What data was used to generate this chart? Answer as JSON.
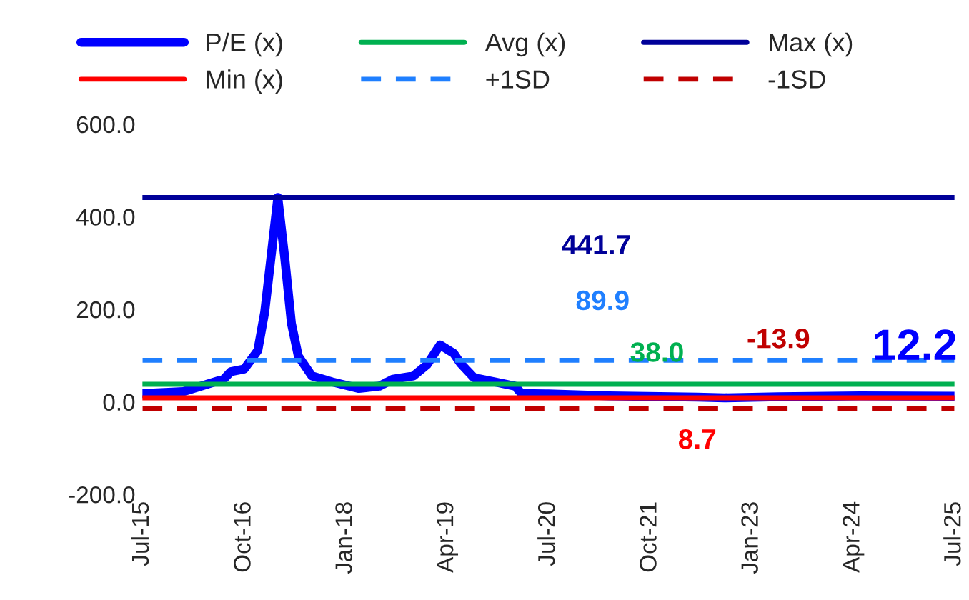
{
  "chart_data": {
    "type": "line",
    "x": [
      "2015-07",
      "2016-01",
      "2016-07",
      "2016-08",
      "2016-10",
      "2016-12",
      "2017-01",
      "2017-02",
      "2017-03",
      "2017-04",
      "2017-05",
      "2017-06",
      "2017-08",
      "2017-11",
      "2018-03",
      "2018-06",
      "2018-08",
      "2018-11",
      "2019-01",
      "2019-03",
      "2019-05",
      "2019-06",
      "2019-08",
      "2019-11",
      "2020-02",
      "2020-03",
      "2020-07",
      "2021-04",
      "2022-05",
      "2022-09",
      "2023-05",
      "2024-05",
      "2025-07"
    ],
    "series": [
      {
        "name": "P/E (x)",
        "color": "#0000ff",
        "values": [
          18,
          22,
          49,
          65,
          71,
          111,
          194,
          324,
          441.7,
          312,
          170,
          99,
          56,
          43,
          29,
          34,
          49,
          56,
          80,
          123,
          105,
          83,
          52,
          43,
          34,
          18,
          17,
          13,
          10,
          8.7,
          11,
          13,
          12.2
        ]
      },
      {
        "name": "Avg (x)",
        "color": "#00b050",
        "x": [
          "2015-07",
          "2025-07"
        ],
        "values": [
          38.0,
          38.0
        ]
      },
      {
        "name": "Max (x)",
        "color": "#000099",
        "x": [
          "2015-07",
          "2025-07"
        ],
        "values": [
          441.7,
          441.7
        ]
      },
      {
        "name": "Min (x)",
        "color": "#ff0000",
        "x": [
          "2015-07",
          "2025-07"
        ],
        "values": [
          8.7,
          8.7
        ]
      },
      {
        "name": "+1SD",
        "color": "#1f7fff",
        "line_style": "dashed",
        "x": [
          "2015-07",
          "2025-07"
        ],
        "values": [
          89.9,
          89.9
        ]
      },
      {
        "name": "-1SD",
        "color": "#c00000",
        "line_style": "dashed",
        "x": [
          "2015-07",
          "2025-07"
        ],
        "values": [
          -13.9,
          -13.9
        ]
      }
    ],
    "annotations": [
      {
        "text": "441.7",
        "x": "2021-02",
        "y": 441.7
      },
      {
        "text": "89.9",
        "x": "2021-03",
        "y": 89.9
      },
      {
        "text": "38.0",
        "x": "2021-11",
        "y": 38.0
      },
      {
        "text": "-13.9",
        "x": "2023-05",
        "y": -13.9
      },
      {
        "text": "8.7",
        "x": "2022-05",
        "y": 8.7
      },
      {
        "text": "12.2",
        "x": "2025-07",
        "y": 12.2
      }
    ],
    "xlim": [
      "2015-07",
      "2025-07"
    ],
    "xticks": [
      {
        "value": "2015-07",
        "label": "Jul-15"
      },
      {
        "value": "2016-10",
        "label": "Oct-16"
      },
      {
        "value": "2018-01",
        "label": "Jan-18"
      },
      {
        "value": "2019-04",
        "label": "Apr-19"
      },
      {
        "value": "2020-07",
        "label": "Jul-20"
      },
      {
        "value": "2021-10",
        "label": "Oct-21"
      },
      {
        "value": "2023-01",
        "label": "Jan-23"
      },
      {
        "value": "2024-04",
        "label": "Apr-24"
      },
      {
        "value": "2025-07",
        "label": "Jul-25"
      }
    ],
    "ylim": [
      -200,
      600
    ],
    "yticks": [
      {
        "value": -200,
        "label": "-200.0"
      },
      {
        "value": 0,
        "label": "0.0"
      },
      {
        "value": 200,
        "label": "200.0"
      },
      {
        "value": 400,
        "label": "400.0"
      },
      {
        "value": 600,
        "label": "600.0"
      }
    ],
    "grid": false,
    "legend": "top",
    "marker": "none",
    "line_style": "solid"
  }
}
